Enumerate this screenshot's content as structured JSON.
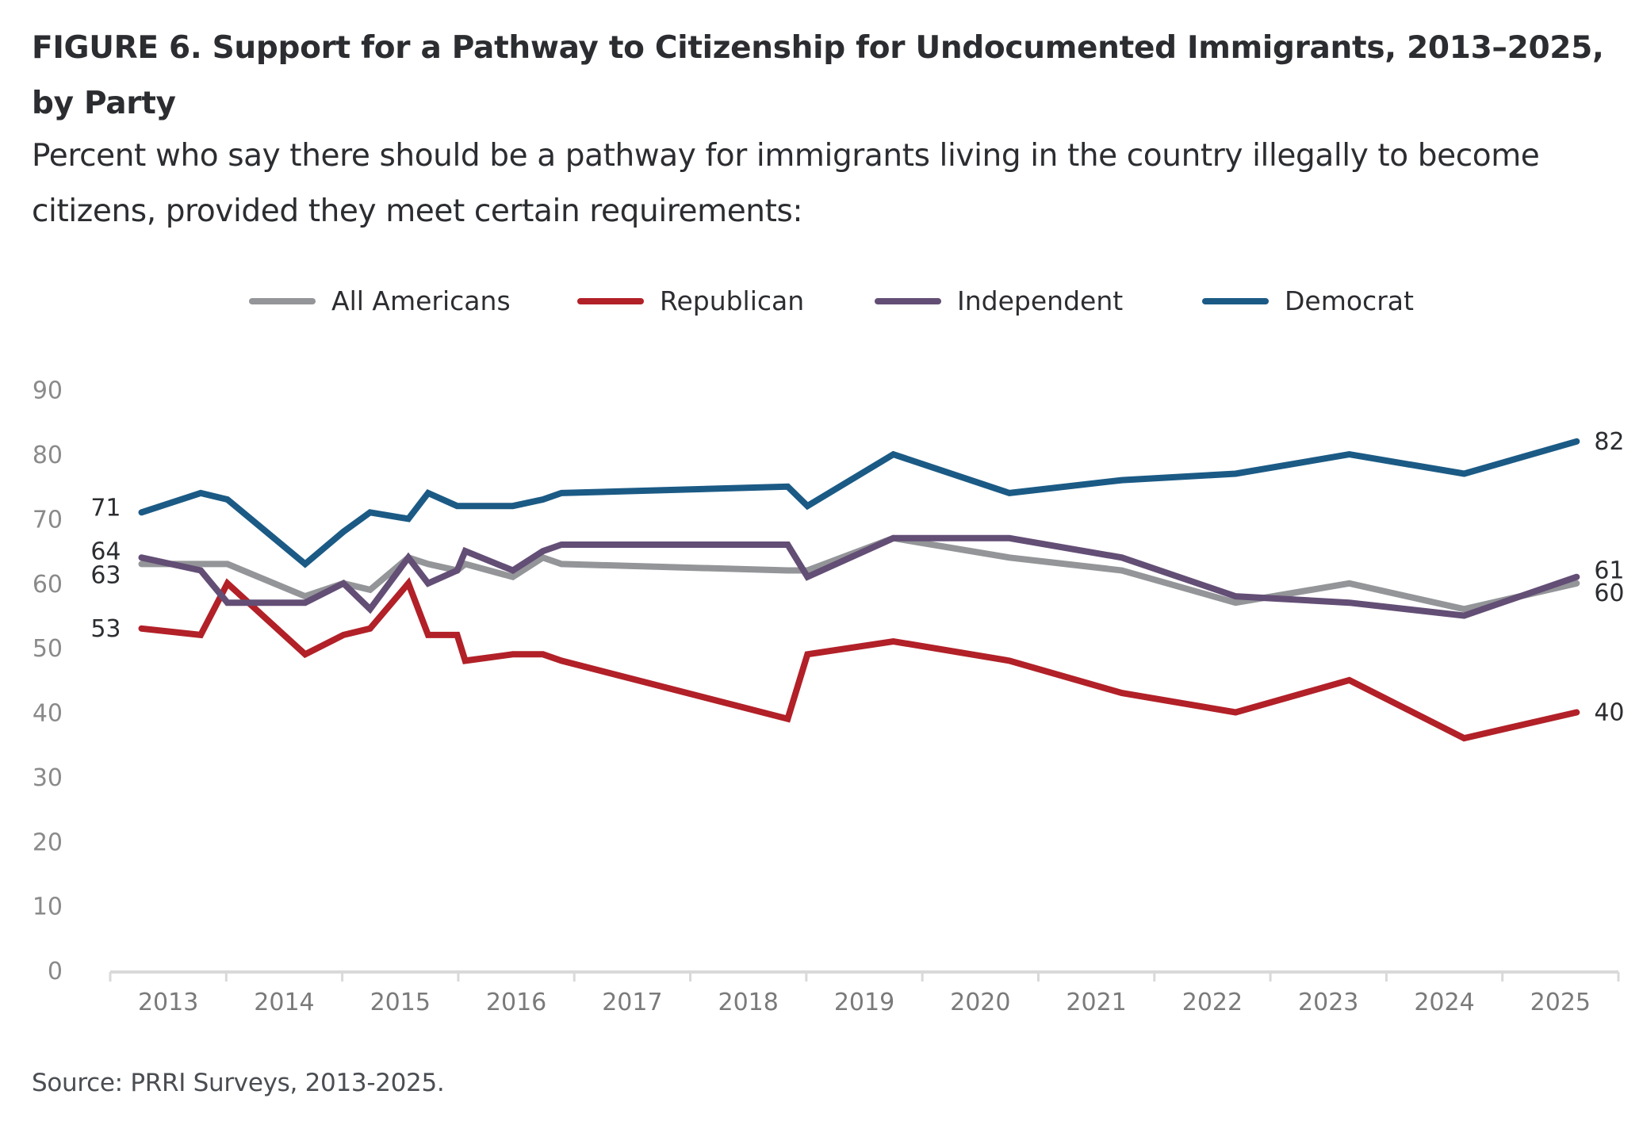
{
  "header": {
    "title": "FIGURE 6. Support for a Pathway to Citizenship for Undocumented Immigrants, 2013–2025, by Party",
    "subtitle": "Percent who say there should be a pathway for immigrants living in the country illegally to become citizens, provided they meet certain requirements:"
  },
  "footer": {
    "source": "Source: PRRI Surveys, 2013-2025."
  },
  "chart_data": {
    "type": "line",
    "title": "Support for a Pathway to Citizenship for Undocumented Immigrants, 2013–2025, by Party",
    "xlabel": "",
    "ylabel": "",
    "ylim": [
      0,
      90
    ],
    "yticks": [
      0,
      10,
      20,
      30,
      40,
      50,
      60,
      70,
      80,
      90
    ],
    "xlim": [
      2013,
      2026
    ],
    "categories": [
      "2013",
      "2014",
      "2015",
      "2016",
      "2017",
      "2018",
      "2019",
      "2020",
      "2021",
      "2022",
      "2023",
      "2024",
      "2025"
    ],
    "grid": false,
    "legend_position": "top-center",
    "x": [
      2013.27,
      2013.78,
      2014.01,
      2014.68,
      2015.01,
      2015.24,
      2015.57,
      2015.74,
      2015.99,
      2016.06,
      2016.47,
      2016.73,
      2016.89,
      2018.84,
      2019.01,
      2019.75,
      2020.75,
      2021.72,
      2022.7,
      2023.68,
      2024.67,
      2025.64
    ],
    "series": [
      {
        "name": "All Americans",
        "color": "#939598",
        "values": [
          63,
          63,
          63,
          58,
          60,
          59,
          64,
          63,
          62,
          63,
          61,
          64,
          63,
          62,
          62,
          67,
          64,
          62,
          57,
          60,
          56,
          60
        ],
        "start_label": "63",
        "end_label": "60"
      },
      {
        "name": "Republican",
        "color": "#B22028",
        "values": [
          53,
          52,
          60,
          49,
          52,
          53,
          60,
          52,
          52,
          48,
          49,
          49,
          48,
          39,
          49,
          51,
          48,
          43,
          40,
          45,
          36,
          40
        ],
        "start_label": "53",
        "end_label": "40"
      },
      {
        "name": "Independent",
        "color": "#634E75",
        "values": [
          64,
          62,
          57,
          57,
          60,
          56,
          64,
          60,
          62,
          65,
          62,
          65,
          66,
          66,
          61,
          67,
          67,
          64,
          58,
          57,
          55,
          61
        ],
        "start_label": "64",
        "end_label": "61"
      },
      {
        "name": "Democrat",
        "color": "#1B5A85",
        "values": [
          71,
          74,
          73,
          63,
          68,
          71,
          70,
          74,
          72,
          72,
          72,
          73,
          74,
          75,
          72,
          80,
          74,
          76,
          77,
          80,
          77,
          82
        ],
        "start_label": "71",
        "end_label": "82"
      }
    ]
  }
}
